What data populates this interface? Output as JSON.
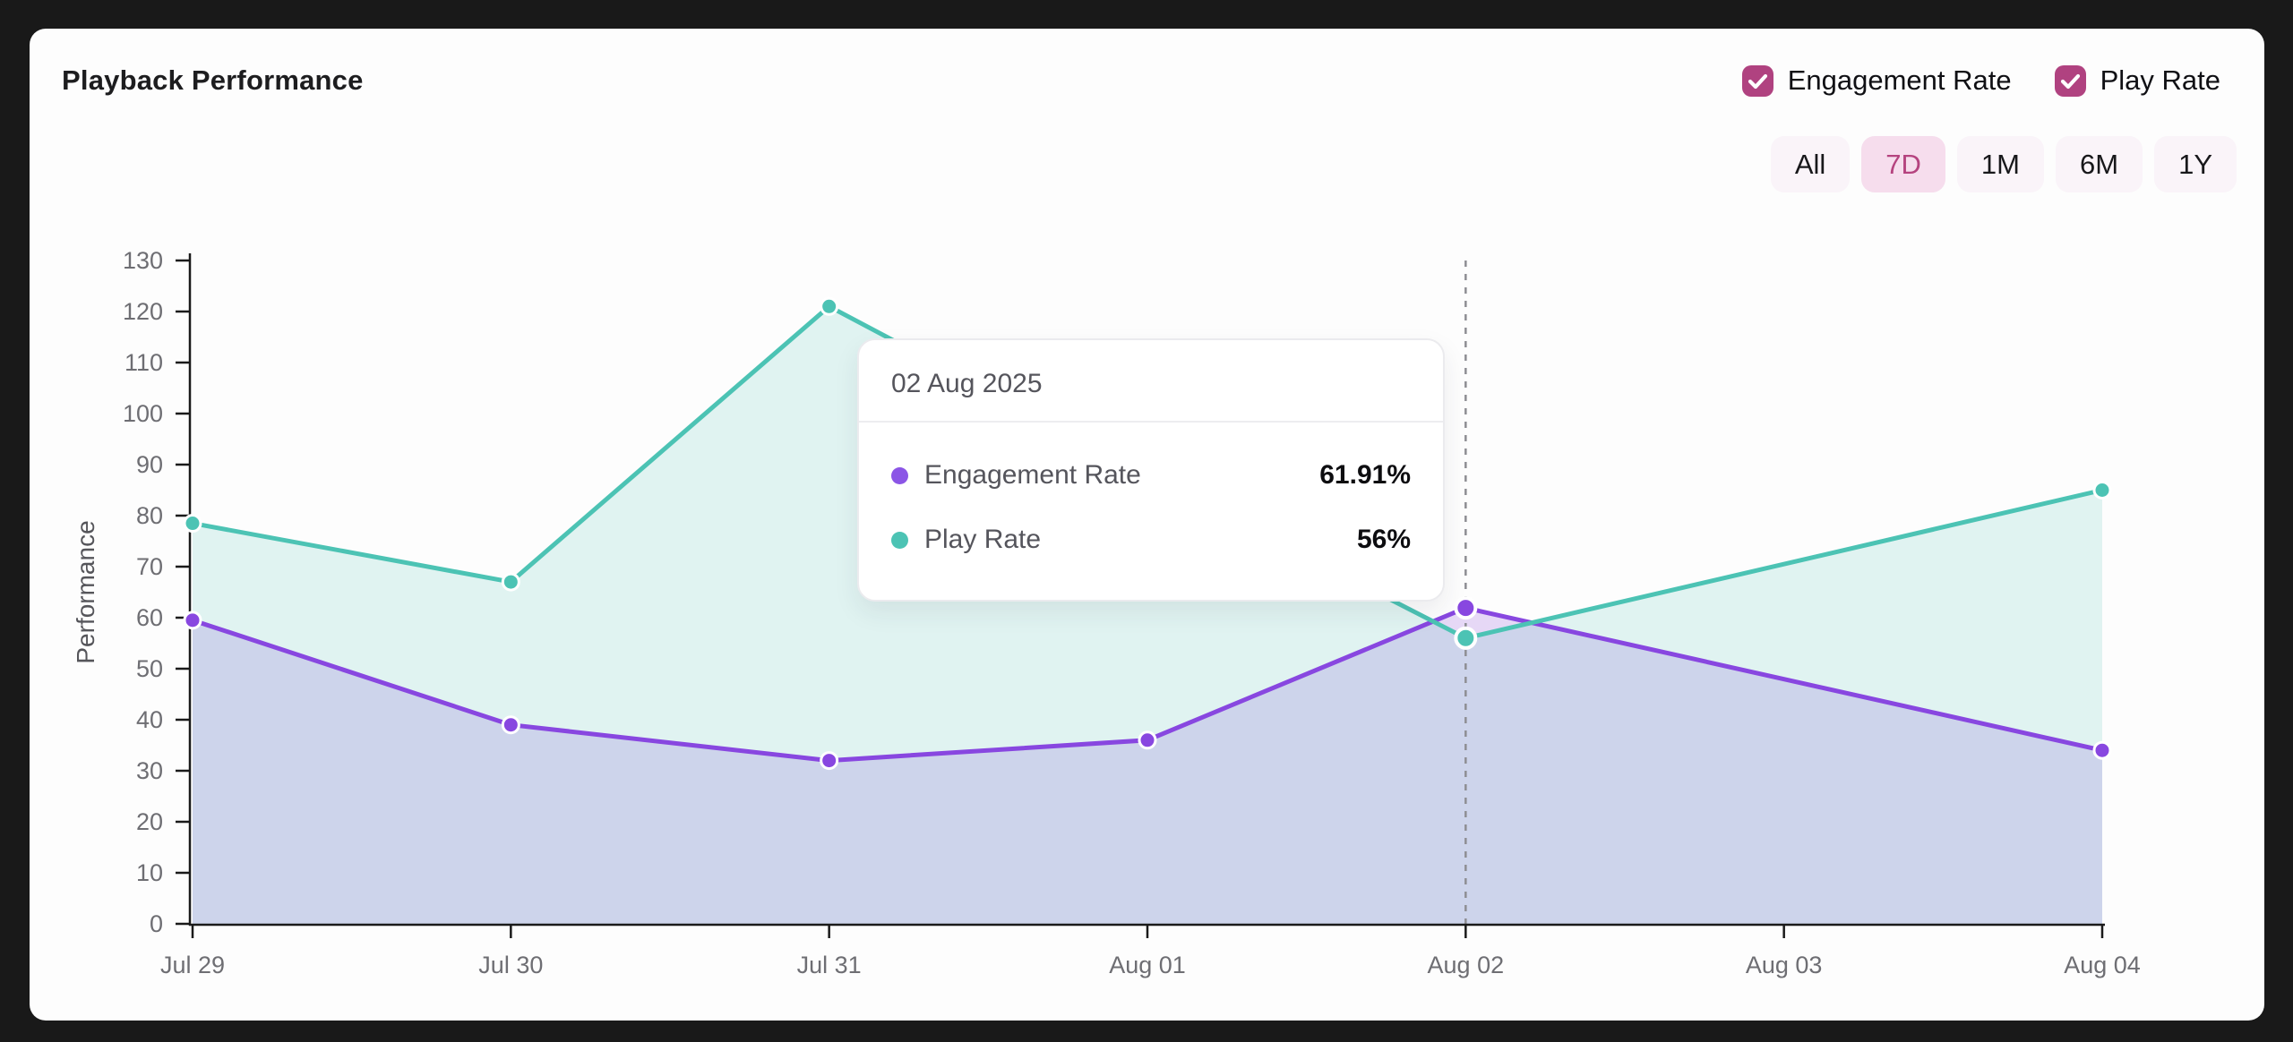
{
  "header": {
    "title": "Playback Performance"
  },
  "legend_toggles": [
    {
      "label": "Engagement Rate",
      "checked": true
    },
    {
      "label": "Play Rate",
      "checked": true
    }
  ],
  "range_buttons": [
    {
      "label": "All",
      "selected": false
    },
    {
      "label": "7D",
      "selected": true
    },
    {
      "label": "1M",
      "selected": false
    },
    {
      "label": "6M",
      "selected": false
    },
    {
      "label": "1Y",
      "selected": false
    }
  ],
  "tooltip": {
    "date": "02 Aug 2025",
    "rows": [
      {
        "label": "Engagement Rate",
        "value": "61.91%",
        "dot_color": "#8b55e6"
      },
      {
        "label": "Play Rate",
        "value": "56%",
        "dot_color": "#4cc3b4"
      }
    ]
  },
  "chart_data": {
    "type": "area",
    "title": "Playback Performance",
    "xlabel": "",
    "ylabel": "Performance",
    "categories": [
      "Jul 29",
      "Jul 30",
      "Jul 31",
      "Aug 01",
      "Aug 02",
      "Aug 03",
      "Aug 04"
    ],
    "series": [
      {
        "name": "Engagement Rate",
        "color": "#8847e0",
        "fill": "rgba(138,69,222,0.20)",
        "values": [
          59.5,
          39,
          32,
          36,
          61.91,
          null,
          34
        ]
      },
      {
        "name": "Play Rate",
        "color": "#4cc3b4",
        "fill": "rgba(76,195,180,0.16)",
        "values": [
          78.5,
          67,
          121,
          88,
          56,
          null,
          85
        ]
      }
    ],
    "ylim": [
      0,
      130
    ],
    "ytick_step": 10,
    "grid": false,
    "legend_position": "top-right",
    "active_point": {
      "index": 4,
      "category": "Aug 02",
      "crosshair": "dashed-vertical"
    }
  },
  "colors": {
    "page_bg": "#191919",
    "card_bg": "#fdfdfd",
    "accent_magenta": "#b04280",
    "selected_btn_bg": "#f6dded",
    "selected_btn_text": "#b5437f",
    "axis": "#1a1a1a",
    "tick_text": "#6e6e73",
    "crosshair": "#8e8e93"
  }
}
